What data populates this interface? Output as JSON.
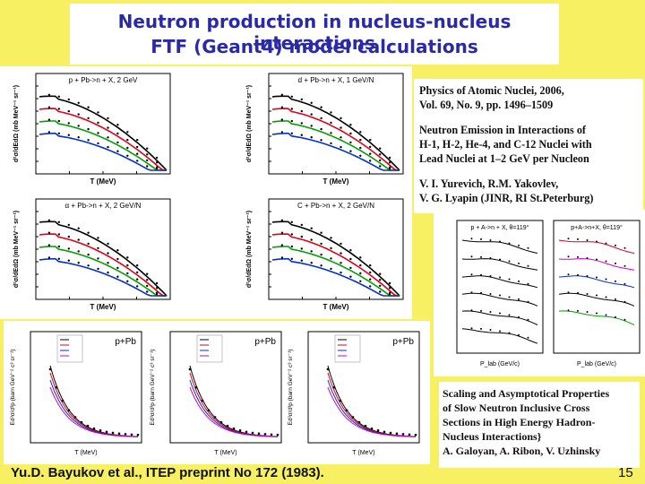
{
  "title": {
    "line1": "Neutron production in nucleus-nucleus interactions",
    "line2": "FTF (Geant4) model calculations"
  },
  "reference_top": {
    "lines": [
      "Physics of Atomic Nuclei, 2006,",
      "Vol. 69, No. 9, pp. 1496–1509",
      "Neutron Emission in Interactions of",
      "H-1, H-2, He-4, and C-12 Nuclei with",
      "Lead Nuclei at 1–2 GeV per Nucleon",
      "V. I. Yurevich,  R.M. Yakovlev,",
      "V. G. Lyapin   (JINR, RI St.Peterburg)"
    ]
  },
  "reference_bottom": {
    "lines": [
      "Scaling and Asymptotical Properties",
      "of Slow Neutron Inclusive Cross",
      "Sections in High Energy Hadron-",
      "Nucleus Interactions}",
      "A. Galoyan,  A. Ribon,  V. Uzhinsky"
    ]
  },
  "panels": [
    {
      "title": "p + Pb->n + X, 2 GeV",
      "xlabel": "T (MeV)",
      "ylabel": "d²σ/dEdΩ (mb MeV⁻¹ sr⁻¹)"
    },
    {
      "title": "d + Pb->n + X, 1 GeV/N",
      "xlabel": "T (MeV)",
      "ylabel": "d²σ/dEdΩ (mb MeV⁻¹ sr⁻¹)"
    },
    {
      "title": "α + Pb->n + X, 2 GeV/N",
      "xlabel": "T (MeV)",
      "ylabel": "d²σ/dEdΩ (mb MeV⁻¹ sr⁻¹)"
    },
    {
      "title": "C + Pb->n + X, 2 GeV/N",
      "xlabel": "T (MeV)",
      "ylabel": "d²σ/dEdΩ (mb MeV⁻¹ sr⁻¹)"
    }
  ],
  "bottom_panels": [
    {
      "label": "p+Pb",
      "xlabel": "T (MeV)",
      "ylabel": "Ed³σ/d³p (barn GeV⁻² c³ sr⁻¹)"
    },
    {
      "label": "p+Pb",
      "xlabel": "T (MeV)",
      "ylabel": "Ed³σ/d³p (barn GeV⁻² c³ sr⁻¹)"
    },
    {
      "label": "p+Pb",
      "xlabel": "T (MeV)",
      "ylabel": "Ed³σ/d³p (barn GeV⁻² c³ sr⁻¹)"
    }
  ],
  "right_panels": [
    {
      "label": "p + A->n + X, θ=119°",
      "xlabel": "P_lab (GeV/c)"
    },
    {
      "label": "p+A->n+X, θ=119°",
      "xlabel": "P_lab (GeV/c)"
    }
  ],
  "footer": "Yu.D. Bayukov et al., ITEP preprint No 172 (1983).",
  "page_number": "15",
  "colors": {
    "background": "#f6f062",
    "title": "#2a2aa6",
    "curve_black": "#000000",
    "curve_red": "#e0001a",
    "curve_green": "#00a000",
    "curve_blue": "#0030d0",
    "curve_magenta": "#d000c0"
  }
}
